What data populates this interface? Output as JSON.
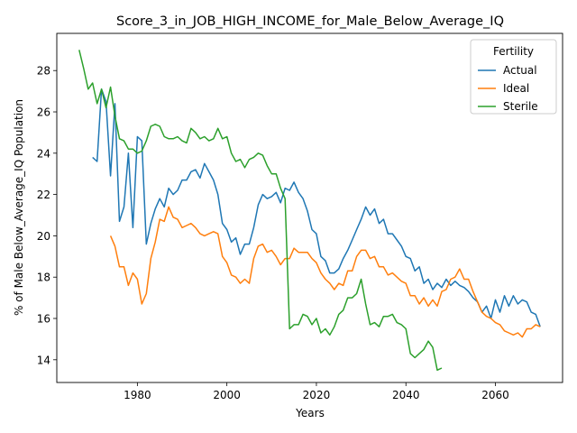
{
  "chart_data": {
    "type": "line",
    "title": "Score_3_in_JOB_HIGH_INCOME_for_Male_Below_Average_IQ",
    "xlabel": "Years",
    "ylabel": "% of Male Below_Average_IQ Population",
    "xlim": [
      1962,
      2075
    ],
    "ylim": [
      12.9,
      29.8
    ],
    "x_ticks": [
      1980,
      2000,
      2020,
      2040,
      2060
    ],
    "y_ticks": [
      14,
      16,
      18,
      20,
      22,
      24,
      26,
      28
    ],
    "grid": false,
    "legend": {
      "title": "Fertility",
      "placement": "top-right"
    },
    "series": [
      {
        "name": "Actual",
        "color": "#1f77b4",
        "x": [
          1970,
          1971,
          1972,
          1973,
          1974,
          1975,
          1976,
          1977,
          1978,
          1979,
          1980,
          1981,
          1982,
          1983,
          1984,
          1985,
          1986,
          1987,
          1988,
          1989,
          1990,
          1991,
          1992,
          1993,
          1994,
          1995,
          1996,
          1997,
          1998,
          1999,
          2000,
          2001,
          2002,
          2003,
          2004,
          2005,
          2006,
          2007,
          2008,
          2009,
          2010,
          2011,
          2012,
          2013,
          2014,
          2015,
          2016,
          2017,
          2018,
          2019,
          2020,
          2021,
          2022,
          2023,
          2024,
          2025,
          2026,
          2027,
          2028,
          2029,
          2030,
          2031,
          2032,
          2033,
          2034,
          2035,
          2036,
          2037,
          2038,
          2039,
          2040,
          2041,
          2042,
          2043,
          2044,
          2045,
          2046,
          2047,
          2048,
          2049,
          2050,
          2051,
          2052,
          2053,
          2054,
          2055,
          2056,
          2057,
          2058,
          2059,
          2060,
          2061,
          2062,
          2063,
          2064,
          2065,
          2066,
          2067,
          2068,
          2069,
          2070
        ],
        "values": [
          23.8,
          23.6,
          27.1,
          26.5,
          22.9,
          26.4,
          20.7,
          21.4,
          24.0,
          20.4,
          24.8,
          24.6,
          19.6,
          20.6,
          21.3,
          21.8,
          21.4,
          22.3,
          22.0,
          22.2,
          22.7,
          22.7,
          23.1,
          23.2,
          22.8,
          23.5,
          23.1,
          22.7,
          22.0,
          20.6,
          20.3,
          19.7,
          19.9,
          19.1,
          19.6,
          19.6,
          20.4,
          21.5,
          22.0,
          21.8,
          21.9,
          22.1,
          21.6,
          22.3,
          22.2,
          22.6,
          22.1,
          21.8,
          21.2,
          20.3,
          20.1,
          19.0,
          18.8,
          18.2,
          18.2,
          18.4,
          18.9,
          19.3,
          19.8,
          20.3,
          20.8,
          21.4,
          21.0,
          21.3,
          20.6,
          20.8,
          20.1,
          20.1,
          19.8,
          19.5,
          19.0,
          18.9,
          18.3,
          18.5,
          17.7,
          17.9,
          17.4,
          17.7,
          17.5,
          17.9,
          17.6,
          17.8,
          17.6,
          17.5,
          17.3,
          17.0,
          16.8,
          16.3,
          16.6,
          16.0,
          16.9,
          16.3,
          17.1,
          16.6,
          17.1,
          16.7,
          16.9,
          16.8,
          16.3,
          16.2,
          15.6
        ]
      },
      {
        "name": "Ideal",
        "color": "#ff7f0e",
        "x": [
          1974,
          1975,
          1976,
          1977,
          1978,
          1979,
          1980,
          1981,
          1982,
          1983,
          1984,
          1985,
          1986,
          1987,
          1988,
          1989,
          1990,
          1991,
          1992,
          1993,
          1994,
          1995,
          1996,
          1997,
          1998,
          1999,
          2000,
          2001,
          2002,
          2003,
          2004,
          2005,
          2006,
          2007,
          2008,
          2009,
          2010,
          2011,
          2012,
          2013,
          2014,
          2015,
          2016,
          2017,
          2018,
          2019,
          2020,
          2021,
          2022,
          2023,
          2024,
          2025,
          2026,
          2027,
          2028,
          2029,
          2030,
          2031,
          2032,
          2033,
          2034,
          2035,
          2036,
          2037,
          2038,
          2039,
          2040,
          2041,
          2042,
          2043,
          2044,
          2045,
          2046,
          2047,
          2048,
          2049,
          2050,
          2051,
          2052,
          2053,
          2054,
          2055,
          2056,
          2057,
          2058,
          2059,
          2060,
          2061,
          2062,
          2063,
          2064,
          2065,
          2066,
          2067,
          2068,
          2069,
          2070
        ],
        "values": [
          20.0,
          19.5,
          18.5,
          18.5,
          17.6,
          18.2,
          17.9,
          16.7,
          17.2,
          18.9,
          19.7,
          20.8,
          20.7,
          21.4,
          20.9,
          20.8,
          20.4,
          20.5,
          20.6,
          20.4,
          20.1,
          20.0,
          20.1,
          20.2,
          20.1,
          19.0,
          18.7,
          18.1,
          18.0,
          17.7,
          17.9,
          17.7,
          18.9,
          19.5,
          19.6,
          19.2,
          19.3,
          19.0,
          18.6,
          18.9,
          18.9,
          19.4,
          19.2,
          19.2,
          19.2,
          18.9,
          18.7,
          18.2,
          17.9,
          17.7,
          17.4,
          17.7,
          17.6,
          18.3,
          18.3,
          19.0,
          19.3,
          19.3,
          18.9,
          19.0,
          18.5,
          18.5,
          18.1,
          18.2,
          18.0,
          17.8,
          17.7,
          17.1,
          17.1,
          16.7,
          17.0,
          16.6,
          16.9,
          16.6,
          17.3,
          17.4,
          17.9,
          18.0,
          18.4,
          17.9,
          17.9,
          17.3,
          16.8,
          16.3,
          16.1,
          16.0,
          15.8,
          15.7,
          15.4,
          15.3,
          15.2,
          15.3,
          15.1,
          15.5,
          15.5,
          15.7,
          15.6
        ]
      },
      {
        "name": "Sterile",
        "color": "#2ca02c",
        "x": [
          1967,
          1968,
          1969,
          1970,
          1971,
          1972,
          1973,
          1974,
          1975,
          1976,
          1977,
          1978,
          1979,
          1980,
          1981,
          1982,
          1983,
          1984,
          1985,
          1986,
          1987,
          1988,
          1989,
          1990,
          1991,
          1992,
          1993,
          1994,
          1995,
          1996,
          1997,
          1998,
          1999,
          2000,
          2001,
          2002,
          2003,
          2004,
          2005,
          2006,
          2007,
          2008,
          2009,
          2010,
          2011,
          2012,
          2013,
          2014,
          2015,
          2016,
          2017,
          2018,
          2019,
          2020,
          2021,
          2022,
          2023,
          2024,
          2025,
          2026,
          2027,
          2028,
          2029,
          2030,
          2031,
          2032,
          2033,
          2034,
          2035,
          2036,
          2037,
          2038,
          2039,
          2040,
          2041,
          2042,
          2043,
          2044,
          2045,
          2046,
          2047,
          2048
        ],
        "values": [
          29.0,
          28.1,
          27.1,
          27.4,
          26.4,
          27.1,
          26.2,
          27.2,
          25.8,
          24.7,
          24.6,
          24.2,
          24.2,
          24.0,
          24.1,
          24.6,
          25.3,
          25.4,
          25.3,
          24.8,
          24.7,
          24.7,
          24.8,
          24.6,
          24.5,
          25.2,
          25.0,
          24.7,
          24.8,
          24.6,
          24.7,
          25.2,
          24.7,
          24.8,
          24.0,
          23.6,
          23.7,
          23.3,
          23.7,
          23.8,
          24.0,
          23.9,
          23.4,
          23.0,
          23.0,
          22.3,
          21.8,
          15.5,
          15.7,
          15.7,
          16.2,
          16.1,
          15.7,
          16.0,
          15.3,
          15.5,
          15.2,
          15.6,
          16.2,
          16.4,
          17.0,
          17.0,
          17.2,
          17.9,
          16.7,
          15.7,
          15.8,
          15.6,
          16.1,
          16.1,
          16.2,
          15.8,
          15.7,
          15.5,
          14.3,
          14.1,
          14.3,
          14.5,
          14.9,
          14.6,
          13.5,
          13.6
        ]
      }
    ]
  }
}
